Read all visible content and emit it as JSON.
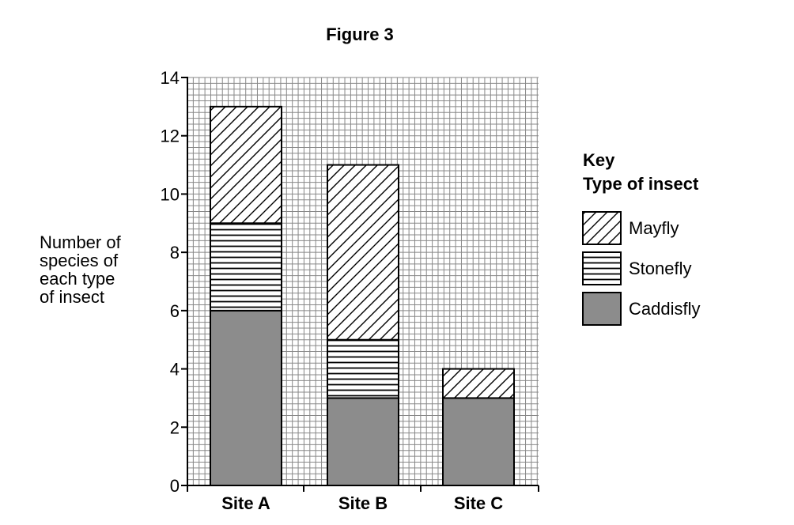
{
  "chart_data": {
    "type": "bar",
    "stacked": true,
    "title": "Figure 3",
    "ylabel_lines": [
      "Number of",
      "species of",
      "each type",
      "of insect"
    ],
    "xlabel": "",
    "categories": [
      "Site A",
      "Site B",
      "Site C"
    ],
    "ylim": [
      0,
      14
    ],
    "yticks": [
      0,
      2,
      4,
      6,
      8,
      10,
      12,
      14
    ],
    "grid": true,
    "legend_position": "right",
    "legend_title_lines": [
      "Key",
      "Type of insect"
    ],
    "series": [
      {
        "name": "Caddisfly",
        "values": [
          6,
          3,
          3
        ],
        "pattern": "solid",
        "color": "#8c8c8c"
      },
      {
        "name": "Stonefly",
        "values": [
          3,
          2,
          0
        ],
        "pattern": "horizontal-lines",
        "color": "#ffffff"
      },
      {
        "name": "Mayfly",
        "values": [
          4,
          6,
          1
        ],
        "pattern": "diagonal-lines",
        "color": "#ffffff"
      }
    ],
    "legend_order": [
      "Mayfly",
      "Stonefly",
      "Caddisfly"
    ]
  }
}
